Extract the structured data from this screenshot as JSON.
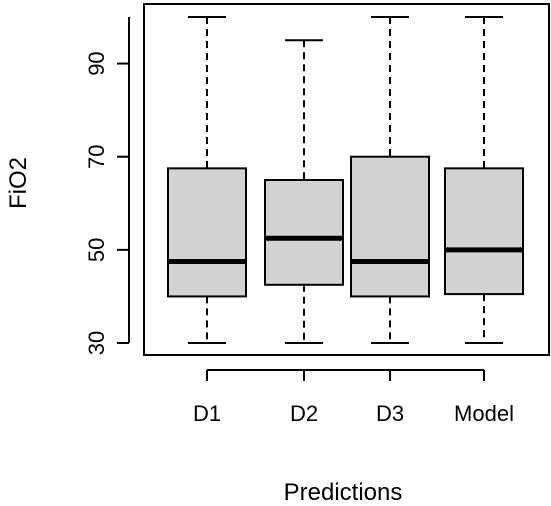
{
  "chart_data": {
    "type": "box",
    "title": "",
    "xlabel": "Predictions",
    "ylabel": "FiO2",
    "ylim": [
      28,
      100
    ],
    "yticks": [
      30,
      50,
      70,
      90
    ],
    "categories": [
      "D1",
      "D2",
      "D3",
      "Model"
    ],
    "boxes": [
      {
        "min": 30,
        "q1": 40,
        "median": 47.5,
        "q3": 67.5,
        "max": 100
      },
      {
        "min": 30,
        "q1": 42.5,
        "median": 52.5,
        "q3": 65,
        "max": 95
      },
      {
        "min": 30,
        "q1": 40,
        "median": 47.5,
        "q3": 70,
        "max": 100
      },
      {
        "min": 30,
        "q1": 40.5,
        "median": 50,
        "q3": 67.5,
        "max": 100
      }
    ],
    "grid": false,
    "colors": {
      "box_fill": "#d3d3d3",
      "stroke": "#000000"
    }
  }
}
